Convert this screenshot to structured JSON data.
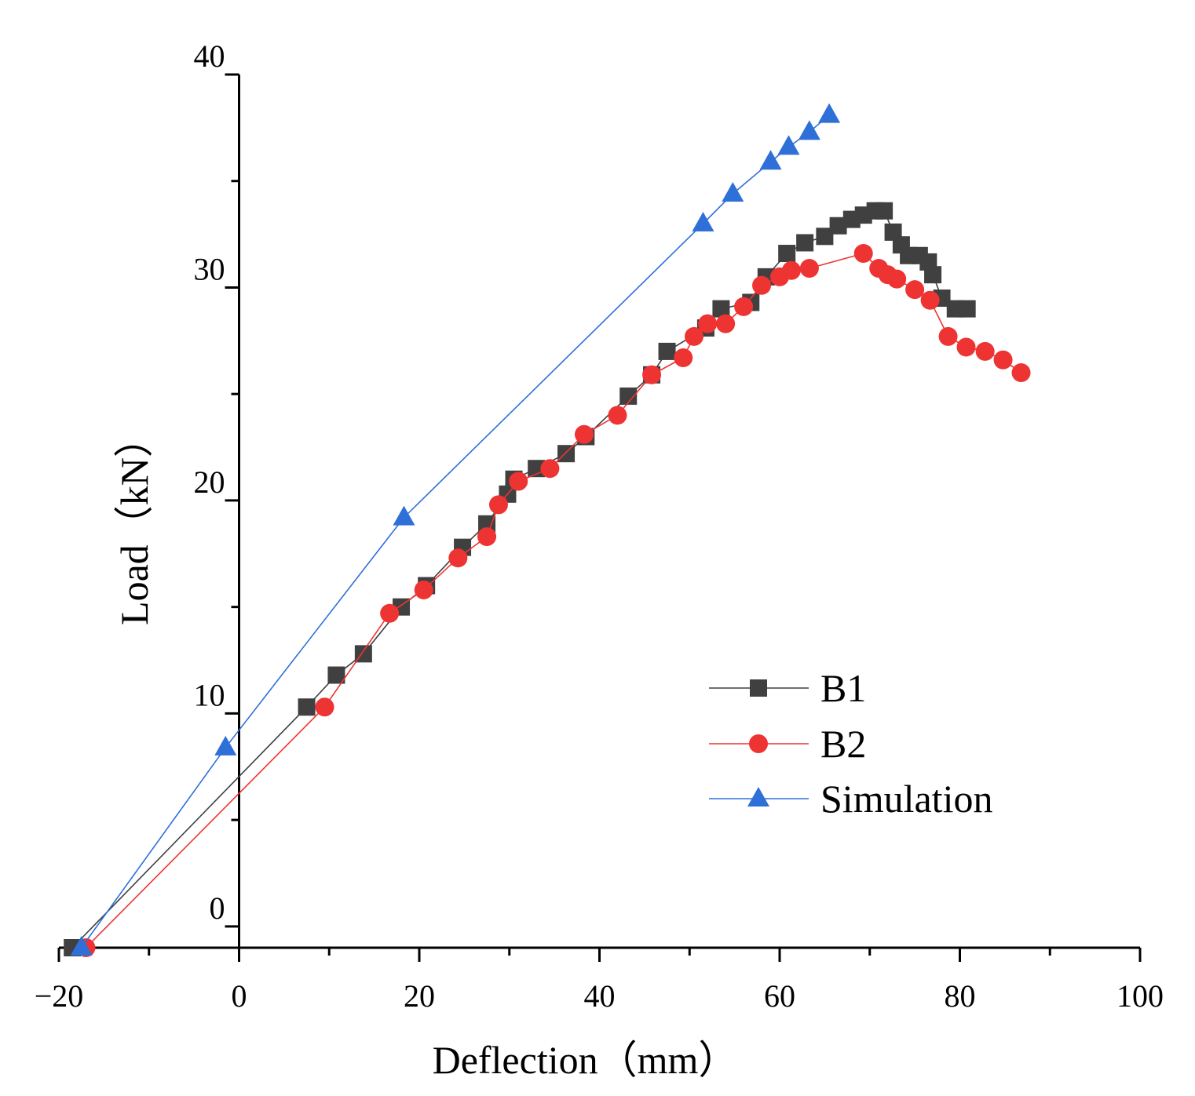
{
  "chart_data": {
    "type": "line",
    "title": "",
    "xlabel": "Deflection（mm）",
    "ylabel": "Load（kN）",
    "xlim": [
      -20,
      100
    ],
    "ylim": [
      -1,
      40
    ],
    "x_ticks": [
      -20,
      0,
      20,
      40,
      60,
      80,
      100
    ],
    "x_tick_labels": [
      "−20",
      "0",
      "20",
      "40",
      "60",
      "80",
      "100"
    ],
    "y_labeled_ticks": [
      0,
      10,
      20,
      30,
      40
    ],
    "y_tick_labels": [
      "0",
      "10",
      "20",
      "30",
      "40"
    ],
    "y_minor_ticks": [
      5,
      15,
      25,
      35
    ],
    "legend_position": "right-middle",
    "series": [
      {
        "name": "B1",
        "color": "#404040",
        "marker": "square",
        "points": [
          [
            -18.5,
            -1.0
          ],
          [
            7.5,
            10.3
          ],
          [
            10.8,
            11.8
          ],
          [
            13.8,
            12.8
          ],
          [
            18.0,
            15.0
          ],
          [
            20.8,
            16.0
          ],
          [
            24.8,
            17.8
          ],
          [
            27.5,
            18.9
          ],
          [
            29.8,
            20.3
          ],
          [
            30.5,
            21.0
          ],
          [
            33.0,
            21.5
          ],
          [
            36.3,
            22.2
          ],
          [
            38.5,
            23.0
          ],
          [
            43.2,
            24.9
          ],
          [
            45.8,
            25.9
          ],
          [
            47.5,
            27.0
          ],
          [
            51.8,
            28.1
          ],
          [
            53.5,
            29.0
          ],
          [
            56.8,
            29.3
          ],
          [
            58.5,
            30.5
          ],
          [
            60.8,
            31.6
          ],
          [
            62.8,
            32.1
          ],
          [
            65.0,
            32.4
          ],
          [
            66.5,
            32.9
          ],
          [
            68.0,
            33.2
          ],
          [
            69.3,
            33.4
          ],
          [
            70.6,
            33.6
          ],
          [
            71.6,
            33.6
          ],
          [
            72.6,
            32.6
          ],
          [
            73.5,
            32.0
          ],
          [
            74.3,
            31.5
          ],
          [
            75.5,
            31.5
          ],
          [
            76.5,
            31.2
          ],
          [
            77.0,
            30.6
          ],
          [
            78.0,
            29.5
          ],
          [
            79.5,
            29.0
          ],
          [
            80.8,
            29.0
          ]
        ]
      },
      {
        "name": "B2",
        "color": "#ee3333",
        "marker": "circle",
        "points": [
          [
            -17.0,
            -1.0
          ],
          [
            9.5,
            10.3
          ],
          [
            16.7,
            14.7
          ],
          [
            20.5,
            15.8
          ],
          [
            24.3,
            17.3
          ],
          [
            27.5,
            18.3
          ],
          [
            28.8,
            19.8
          ],
          [
            31.0,
            20.9
          ],
          [
            34.5,
            21.5
          ],
          [
            38.3,
            23.1
          ],
          [
            42.0,
            24.0
          ],
          [
            45.8,
            25.9
          ],
          [
            49.3,
            26.7
          ],
          [
            50.5,
            27.7
          ],
          [
            52.0,
            28.3
          ],
          [
            54.0,
            28.3
          ],
          [
            56.0,
            29.1
          ],
          [
            58.0,
            30.1
          ],
          [
            60.0,
            30.5
          ],
          [
            61.3,
            30.8
          ],
          [
            63.3,
            30.9
          ],
          [
            69.3,
            31.6
          ],
          [
            71.0,
            30.9
          ],
          [
            72.0,
            30.6
          ],
          [
            73.0,
            30.4
          ],
          [
            75.0,
            29.9
          ],
          [
            76.7,
            29.4
          ],
          [
            78.7,
            27.7
          ],
          [
            80.7,
            27.2
          ],
          [
            82.8,
            27.0
          ],
          [
            84.8,
            26.6
          ],
          [
            86.8,
            26.0
          ]
        ]
      },
      {
        "name": "Simulation",
        "color": "#2f6fd8",
        "marker": "triangle",
        "points": [
          [
            -17.5,
            -1.0
          ],
          [
            -1.5,
            8.4
          ],
          [
            18.3,
            19.2
          ],
          [
            51.5,
            33.0
          ],
          [
            54.8,
            34.4
          ],
          [
            59.0,
            35.9
          ],
          [
            61.0,
            36.6
          ],
          [
            63.3,
            37.3
          ],
          [
            65.5,
            38.1
          ]
        ]
      }
    ]
  }
}
